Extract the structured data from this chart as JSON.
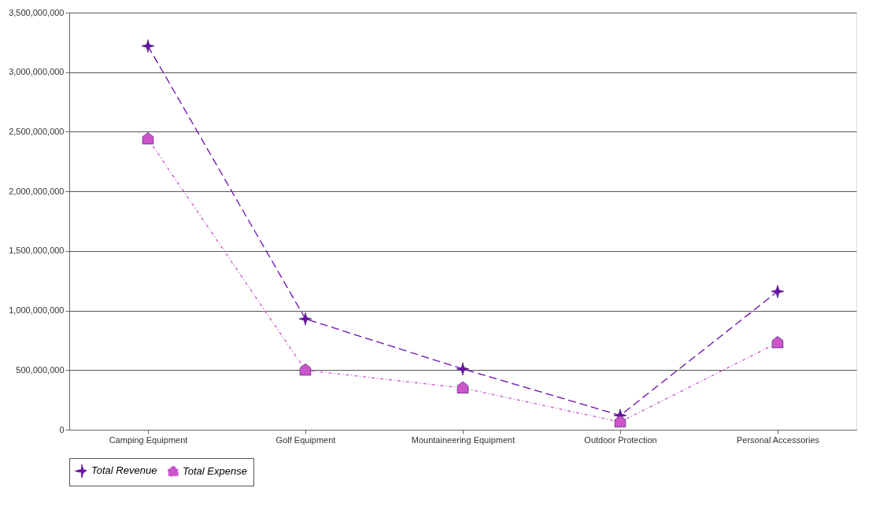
{
  "chart_data": {
    "type": "line",
    "categories": [
      "Camping Equipment",
      "Golf Equipment",
      "Mountaineering Equipment",
      "Outdoor Protection",
      "Personal Accessories"
    ],
    "series": [
      {
        "name": "Total Revenue",
        "color": "#6a0dad",
        "marker": "star",
        "line_style": "dashed",
        "values": [
          3220000000,
          930000000,
          510000000,
          120000000,
          1160000000
        ]
      },
      {
        "name": "Total Expense",
        "color": "#cc55cc",
        "marker": "square",
        "line_style": "dotted",
        "values": [
          2440000000,
          500000000,
          350000000,
          65000000,
          730000000
        ]
      }
    ],
    "ylim": [
      0,
      3500000000
    ],
    "yticks": [
      0,
      {
        "value": 500000000,
        "label": "500,000,000"
      },
      {
        "value": 1000000000,
        "label": "1,000,000,000"
      },
      {
        "value": 1500000000,
        "label": "1,500,000,000"
      },
      {
        "value": 2000000000,
        "label": "2,000,000,000"
      },
      {
        "value": 2500000000,
        "label": "2,500,000,000"
      },
      {
        "value": 3000000000,
        "label": "3,000,000,000"
      },
      {
        "value": 3500000000,
        "label": "3,500,000,000"
      }
    ],
    "grid": "y",
    "legend": "bottom"
  }
}
